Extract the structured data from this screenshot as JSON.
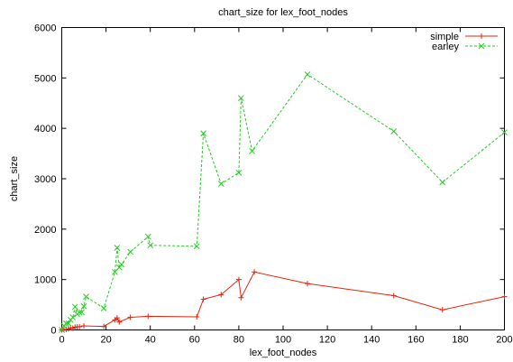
{
  "chart_data": {
    "type": "line",
    "title": "chart_size for lex_foot_nodes",
    "xlabel": "lex_foot_nodes",
    "ylabel": "chart_size",
    "xlim": [
      0,
      200
    ],
    "ylim": [
      0,
      6000
    ],
    "xticks": [
      "0",
      "20",
      "40",
      "60",
      "80",
      "100",
      "120",
      "140",
      "160",
      "180",
      "200"
    ],
    "yticks": [
      "0",
      "1000",
      "2000",
      "3000",
      "4000",
      "5000",
      "6000"
    ],
    "grid": false,
    "legend_position": "top-right",
    "series": [
      {
        "name": "simple",
        "color": "#e8220a",
        "marker": "plus",
        "dash": "solid",
        "points": [
          [
            0,
            0
          ],
          [
            1,
            5
          ],
          [
            2,
            10
          ],
          [
            3,
            20
          ],
          [
            4,
            40
          ],
          [
            5,
            35
          ],
          [
            6,
            55
          ],
          [
            7,
            60
          ],
          [
            8,
            65
          ],
          [
            10,
            80
          ],
          [
            19,
            70
          ],
          [
            24,
            200
          ],
          [
            25,
            240
          ],
          [
            26,
            160
          ],
          [
            31,
            250
          ],
          [
            39,
            270
          ],
          [
            61,
            260
          ],
          [
            64,
            610
          ],
          [
            72,
            700
          ],
          [
            80,
            1000
          ],
          [
            81,
            640
          ],
          [
            87,
            1150
          ],
          [
            111,
            920
          ],
          [
            150,
            680
          ],
          [
            172,
            400
          ],
          [
            200,
            660
          ]
        ]
      },
      {
        "name": "earley",
        "color": "#22cc22",
        "marker": "cross",
        "dash": "dashed",
        "points": [
          [
            0,
            0
          ],
          [
            1,
            80
          ],
          [
            2,
            130
          ],
          [
            3,
            130
          ],
          [
            4,
            200
          ],
          [
            5,
            250
          ],
          [
            6,
            460
          ],
          [
            7,
            310
          ],
          [
            8,
            350
          ],
          [
            9,
            350
          ],
          [
            10,
            470
          ],
          [
            11,
            660
          ],
          [
            19,
            430
          ],
          [
            24,
            1150
          ],
          [
            25,
            1630
          ],
          [
            26,
            1240
          ],
          [
            27,
            1300
          ],
          [
            31,
            1550
          ],
          [
            39,
            1850
          ],
          [
            40,
            1680
          ],
          [
            61,
            1660
          ],
          [
            64,
            3900
          ],
          [
            72,
            2900
          ],
          [
            80,
            3120
          ],
          [
            81,
            4600
          ],
          [
            86,
            3550
          ],
          [
            111,
            5070
          ],
          [
            150,
            3940
          ],
          [
            172,
            2930
          ],
          [
            200,
            3920
          ]
        ]
      }
    ]
  }
}
